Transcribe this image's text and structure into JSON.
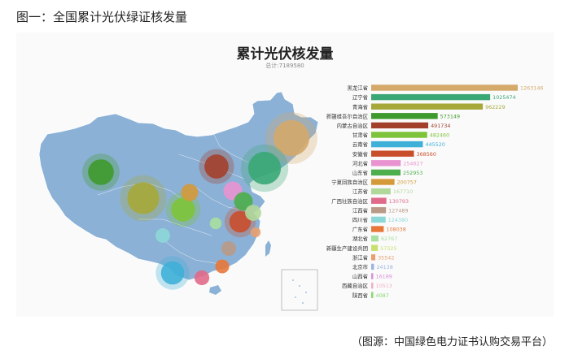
{
  "caption": "图一：全国累计光伏绿证核发量",
  "source": "（图源：中国绿色电力证书认购交易平台）",
  "colors": {
    "map_fill": "#8bb1d6",
    "map_stroke": "#ffffff",
    "panel_bg": "#fafafa"
  },
  "chart_data": {
    "type": "bar",
    "title": "累计光伏核发量",
    "subtitle": "总计:7189580",
    "orientation": "horizontal",
    "categories": [
      "黑龙江省",
      "辽宁省",
      "青海省",
      "新疆维吾尔自治区",
      "内蒙古自治区",
      "甘肃省",
      "云南省",
      "安徽省",
      "河北省",
      "山东省",
      "宁夏回族自治区",
      "江苏省",
      "广西壮族自治区",
      "江西省",
      "四川省",
      "广东省",
      "湖北省",
      "新疆生产建设兵团",
      "浙江省",
      "北京市",
      "山西省",
      "西藏自治区",
      "陕西省"
    ],
    "values": [
      1263146,
      1025474,
      962229,
      573149,
      491734,
      482460,
      445520,
      368560,
      254627,
      252953,
      200757,
      167710,
      130793,
      127489,
      124380,
      108038,
      62767,
      57325,
      35542,
      24138,
      16189,
      10513,
      4087
    ],
    "colors": [
      "#d4a96a",
      "#3aa876",
      "#a6a83a",
      "#3e9a2c",
      "#a3402c",
      "#7ec43a",
      "#3fb0d8",
      "#c94f2c",
      "#e994d0",
      "#4cae4c",
      "#d49a3a",
      "#b0d89a",
      "#e06a8a",
      "#b89a86",
      "#8cd8d8",
      "#e8783a",
      "#a8e0a0",
      "#c8e070",
      "#e8a070",
      "#9cb4e0",
      "#d890d8",
      "#f0b0c0",
      "#8ad870"
    ],
    "map_bubbles": [
      {
        "region": "黑龙江省",
        "value": 1263146
      },
      {
        "region": "辽宁省",
        "value": 1025474
      },
      {
        "region": "青海省",
        "value": 962229
      },
      {
        "region": "新疆维吾尔自治区",
        "value": 573149
      },
      {
        "region": "内蒙古自治区",
        "value": 491734
      },
      {
        "region": "甘肃省",
        "value": 482460
      },
      {
        "region": "云南省",
        "value": 445520
      },
      {
        "region": "安徽省",
        "value": 368560
      },
      {
        "region": "河北省",
        "value": 254627
      },
      {
        "region": "山东省",
        "value": 252953
      },
      {
        "region": "宁夏回族自治区",
        "value": 200757
      },
      {
        "region": "江苏省",
        "value": 167710
      },
      {
        "region": "广西壮族自治区",
        "value": 130793
      },
      {
        "region": "江西省",
        "value": 127489
      },
      {
        "region": "四川省",
        "value": 124380
      },
      {
        "region": "广东省",
        "value": 108038
      },
      {
        "region": "湖北省",
        "value": 62767
      },
      {
        "region": "浙江省",
        "value": 35542
      }
    ]
  }
}
